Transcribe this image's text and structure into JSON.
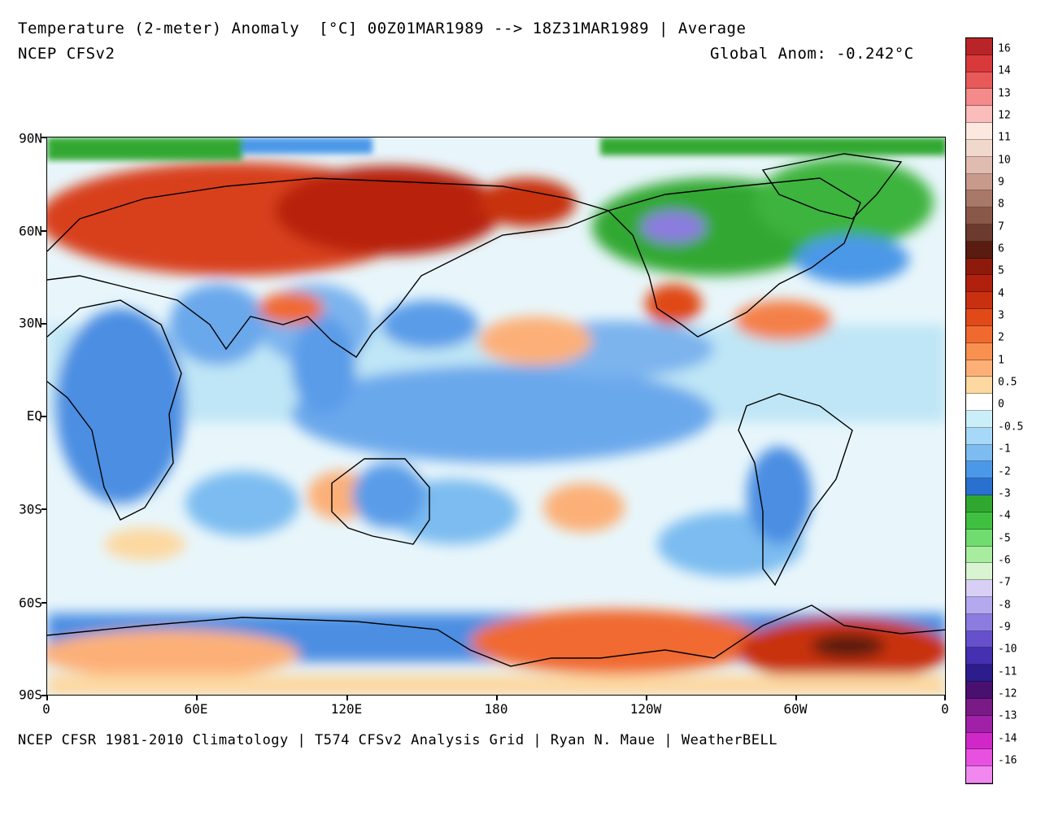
{
  "header": {
    "title": "Temperature (2-meter) Anomaly  [°C] 00Z01MAR1989 --> 18Z31MAR1989 | Average",
    "model": "NCEP CFSv2",
    "global_anom": "Global Anom: -0.242°C"
  },
  "footer": {
    "credit": "NCEP CFSR 1981-2010 Climatology | T574 CFSv2 Analysis Grid | Ryan N. Maue | WeatherBELL"
  },
  "axes": {
    "y_labels": [
      "90N",
      "60N",
      "30N",
      "EQ",
      "30S",
      "60S",
      "90S"
    ],
    "x_labels": [
      "0",
      "60E",
      "120E",
      "180",
      "120W",
      "60W",
      "0"
    ]
  },
  "colorbar": {
    "labels": [
      "16",
      "14",
      "13",
      "12",
      "11",
      "10",
      "9",
      "8",
      "7",
      "6",
      "5",
      "4",
      "3",
      "2",
      "1",
      "0.5",
      "0",
      "-0.5",
      "-1",
      "-2",
      "-3",
      "-4",
      "-5",
      "-6",
      "-7",
      "-8",
      "-9",
      "-10",
      "-11",
      "-12",
      "-13",
      "-14",
      "-16"
    ],
    "colors": [
      "#b82428",
      "#d83a3c",
      "#e85a5a",
      "#f48a8a",
      "#fbbcbc",
      "#fde8e0",
      "#f0d8cc",
      "#e0bcb0",
      "#c89a8c",
      "#a87868",
      "#8a5848",
      "#6c3a2e",
      "#5a1c10",
      "#8e1a0c",
      "#b0200c",
      "#c83010",
      "#e04a18",
      "#f06a30",
      "#f89050",
      "#fcb078",
      "#fdd8a0",
      "#ffffff",
      "#cbeff8",
      "#a8d8f8",
      "#7cbcf0",
      "#4c98e8",
      "#2a70d0",
      "#30a830",
      "#40c040",
      "#70dc70",
      "#a8eca0",
      "#d8f4d0",
      "#d8d0f4",
      "#b4a8ee",
      "#8c7ce0",
      "#6650cc",
      "#4430b0",
      "#2c1c8c",
      "#4a1070",
      "#7a1a86",
      "#a020a8",
      "#d028c8",
      "#e850e0",
      "#f088f0"
    ]
  },
  "map": {
    "land_outline_color": "#000000",
    "warm_color": "#d8401a",
    "cold_color": "#4a8ee0",
    "arctic_green": "#28b428",
    "neutral": "#ffffff"
  }
}
